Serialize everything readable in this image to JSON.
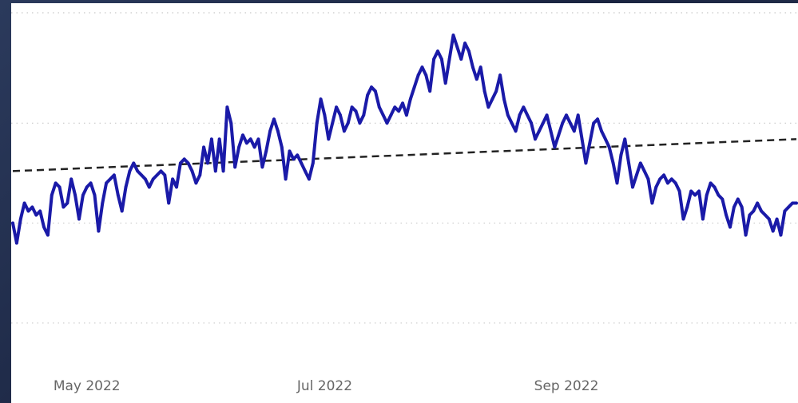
{
  "chart_data": {
    "type": "line",
    "title": "",
    "xlabel": "",
    "ylabel": "",
    "x_start": "2022-04-12",
    "x_end": "2022-10-30",
    "x_ticks": [
      {
        "date": "2022-05-01",
        "label": "May 2022"
      },
      {
        "date": "2022-07-01",
        "label": "Jul 2022"
      },
      {
        "date": "2022-09-01",
        "label": "Sep 2022"
      }
    ],
    "y_range": [
      0,
      100
    ],
    "gridlines_y": [
      20,
      45,
      70
    ],
    "grid": "horizontal dotted",
    "series": [
      {
        "color": "#1a1aa8",
        "points": [
          [
            "2022-04-12",
            45
          ],
          [
            "2022-04-13",
            40
          ],
          [
            "2022-04-14",
            46
          ],
          [
            "2022-04-15",
            50
          ],
          [
            "2022-04-16",
            48
          ],
          [
            "2022-04-17",
            49
          ],
          [
            "2022-04-18",
            47
          ],
          [
            "2022-04-19",
            48
          ],
          [
            "2022-04-20",
            44
          ],
          [
            "2022-04-21",
            42
          ],
          [
            "2022-04-22",
            52
          ],
          [
            "2022-04-23",
            55
          ],
          [
            "2022-04-24",
            54
          ],
          [
            "2022-04-25",
            49
          ],
          [
            "2022-04-26",
            50
          ],
          [
            "2022-04-27",
            56
          ],
          [
            "2022-04-28",
            52
          ],
          [
            "2022-04-29",
            46
          ],
          [
            "2022-04-30",
            52
          ],
          [
            "2022-05-01",
            54
          ],
          [
            "2022-05-02",
            55
          ],
          [
            "2022-05-03",
            52
          ],
          [
            "2022-05-04",
            43
          ],
          [
            "2022-05-05",
            50
          ],
          [
            "2022-05-06",
            55
          ],
          [
            "2022-05-07",
            56
          ],
          [
            "2022-05-08",
            57
          ],
          [
            "2022-05-09",
            52
          ],
          [
            "2022-05-10",
            48
          ],
          [
            "2022-05-11",
            54
          ],
          [
            "2022-05-12",
            58
          ],
          [
            "2022-05-13",
            60
          ],
          [
            "2022-05-14",
            58
          ],
          [
            "2022-05-15",
            57
          ],
          [
            "2022-05-16",
            56
          ],
          [
            "2022-05-17",
            54
          ],
          [
            "2022-05-18",
            56
          ],
          [
            "2022-05-19",
            57
          ],
          [
            "2022-05-20",
            58
          ],
          [
            "2022-05-21",
            57
          ],
          [
            "2022-05-22",
            50
          ],
          [
            "2022-05-23",
            56
          ],
          [
            "2022-05-24",
            54
          ],
          [
            "2022-05-25",
            60
          ],
          [
            "2022-05-26",
            61
          ],
          [
            "2022-05-27",
            60
          ],
          [
            "2022-05-28",
            58
          ],
          [
            "2022-05-29",
            55
          ],
          [
            "2022-05-30",
            57
          ],
          [
            "2022-05-31",
            64
          ],
          [
            "2022-06-01",
            60
          ],
          [
            "2022-06-02",
            66
          ],
          [
            "2022-06-03",
            58
          ],
          [
            "2022-06-04",
            66
          ],
          [
            "2022-06-05",
            58
          ],
          [
            "2022-06-06",
            74
          ],
          [
            "2022-06-07",
            70
          ],
          [
            "2022-06-08",
            59
          ],
          [
            "2022-06-09",
            64
          ],
          [
            "2022-06-10",
            67
          ],
          [
            "2022-06-11",
            65
          ],
          [
            "2022-06-12",
            66
          ],
          [
            "2022-06-13",
            64
          ],
          [
            "2022-06-14",
            66
          ],
          [
            "2022-06-15",
            59
          ],
          [
            "2022-06-16",
            63
          ],
          [
            "2022-06-17",
            68
          ],
          [
            "2022-06-18",
            71
          ],
          [
            "2022-06-19",
            68
          ],
          [
            "2022-06-20",
            64
          ],
          [
            "2022-06-21",
            56
          ],
          [
            "2022-06-22",
            63
          ],
          [
            "2022-06-23",
            61
          ],
          [
            "2022-06-24",
            62
          ],
          [
            "2022-06-25",
            60
          ],
          [
            "2022-06-26",
            58
          ],
          [
            "2022-06-27",
            56
          ],
          [
            "2022-06-28",
            60
          ],
          [
            "2022-06-29",
            70
          ],
          [
            "2022-06-30",
            76
          ],
          [
            "2022-07-01",
            72
          ],
          [
            "2022-07-02",
            66
          ],
          [
            "2022-07-03",
            70
          ],
          [
            "2022-07-04",
            74
          ],
          [
            "2022-07-05",
            72
          ],
          [
            "2022-07-06",
            68
          ],
          [
            "2022-07-07",
            70
          ],
          [
            "2022-07-08",
            74
          ],
          [
            "2022-07-09",
            73
          ],
          [
            "2022-07-10",
            70
          ],
          [
            "2022-07-11",
            72
          ],
          [
            "2022-07-12",
            77
          ],
          [
            "2022-07-13",
            79
          ],
          [
            "2022-07-14",
            78
          ],
          [
            "2022-07-15",
            74
          ],
          [
            "2022-07-16",
            72
          ],
          [
            "2022-07-17",
            70
          ],
          [
            "2022-07-18",
            72
          ],
          [
            "2022-07-19",
            74
          ],
          [
            "2022-07-20",
            73
          ],
          [
            "2022-07-21",
            75
          ],
          [
            "2022-07-22",
            72
          ],
          [
            "2022-07-23",
            76
          ],
          [
            "2022-07-24",
            79
          ],
          [
            "2022-07-25",
            82
          ],
          [
            "2022-07-26",
            84
          ],
          [
            "2022-07-27",
            82
          ],
          [
            "2022-07-28",
            78
          ],
          [
            "2022-07-29",
            86
          ],
          [
            "2022-07-30",
            88
          ],
          [
            "2022-07-31",
            86
          ],
          [
            "2022-08-01",
            80
          ],
          [
            "2022-08-02",
            86
          ],
          [
            "2022-08-03",
            92
          ],
          [
            "2022-08-04",
            89
          ],
          [
            "2022-08-05",
            86
          ],
          [
            "2022-08-06",
            90
          ],
          [
            "2022-08-07",
            88
          ],
          [
            "2022-08-08",
            84
          ],
          [
            "2022-08-09",
            81
          ],
          [
            "2022-08-10",
            84
          ],
          [
            "2022-08-11",
            78
          ],
          [
            "2022-08-12",
            74
          ],
          [
            "2022-08-13",
            76
          ],
          [
            "2022-08-14",
            78
          ],
          [
            "2022-08-15",
            82
          ],
          [
            "2022-08-16",
            76
          ],
          [
            "2022-08-17",
            72
          ],
          [
            "2022-08-18",
            70
          ],
          [
            "2022-08-19",
            68
          ],
          [
            "2022-08-20",
            72
          ],
          [
            "2022-08-21",
            74
          ],
          [
            "2022-08-22",
            72
          ],
          [
            "2022-08-23",
            70
          ],
          [
            "2022-08-24",
            66
          ],
          [
            "2022-08-25",
            68
          ],
          [
            "2022-08-26",
            70
          ],
          [
            "2022-08-27",
            72
          ],
          [
            "2022-08-28",
            68
          ],
          [
            "2022-08-29",
            64
          ],
          [
            "2022-08-30",
            67
          ],
          [
            "2022-08-31",
            70
          ],
          [
            "2022-09-01",
            72
          ],
          [
            "2022-09-02",
            70
          ],
          [
            "2022-09-03",
            68
          ],
          [
            "2022-09-04",
            72
          ],
          [
            "2022-09-05",
            66
          ],
          [
            "2022-09-06",
            60
          ],
          [
            "2022-09-07",
            65
          ],
          [
            "2022-09-08",
            70
          ],
          [
            "2022-09-09",
            71
          ],
          [
            "2022-09-10",
            68
          ],
          [
            "2022-09-11",
            66
          ],
          [
            "2022-09-12",
            64
          ],
          [
            "2022-09-13",
            60
          ],
          [
            "2022-09-14",
            55
          ],
          [
            "2022-09-15",
            62
          ],
          [
            "2022-09-16",
            66
          ],
          [
            "2022-09-17",
            60
          ],
          [
            "2022-09-18",
            54
          ],
          [
            "2022-09-19",
            57
          ],
          [
            "2022-09-20",
            60
          ],
          [
            "2022-09-21",
            58
          ],
          [
            "2022-09-22",
            56
          ],
          [
            "2022-09-23",
            50
          ],
          [
            "2022-09-24",
            54
          ],
          [
            "2022-09-25",
            56
          ],
          [
            "2022-09-26",
            57
          ],
          [
            "2022-09-27",
            55
          ],
          [
            "2022-09-28",
            56
          ],
          [
            "2022-09-29",
            55
          ],
          [
            "2022-09-30",
            53
          ],
          [
            "2022-10-01",
            46
          ],
          [
            "2022-10-02",
            49
          ],
          [
            "2022-10-03",
            53
          ],
          [
            "2022-10-04",
            52
          ],
          [
            "2022-10-05",
            53
          ],
          [
            "2022-10-06",
            46
          ],
          [
            "2022-10-07",
            52
          ],
          [
            "2022-10-08",
            55
          ],
          [
            "2022-10-09",
            54
          ],
          [
            "2022-10-10",
            52
          ],
          [
            "2022-10-11",
            51
          ],
          [
            "2022-10-12",
            47
          ],
          [
            "2022-10-13",
            44
          ],
          [
            "2022-10-14",
            49
          ],
          [
            "2022-10-15",
            51
          ],
          [
            "2022-10-16",
            49
          ],
          [
            "2022-10-17",
            42
          ],
          [
            "2022-10-18",
            47
          ],
          [
            "2022-10-19",
            48
          ],
          [
            "2022-10-20",
            50
          ],
          [
            "2022-10-21",
            48
          ],
          [
            "2022-10-22",
            47
          ],
          [
            "2022-10-23",
            46
          ],
          [
            "2022-10-24",
            43
          ],
          [
            "2022-10-25",
            46
          ],
          [
            "2022-10-26",
            42
          ],
          [
            "2022-10-27",
            48
          ],
          [
            "2022-10-28",
            49
          ],
          [
            "2022-10-29",
            50
          ],
          [
            "2022-10-30",
            50
          ]
        ]
      }
    ],
    "trendline": {
      "style": "dashed",
      "color": "#222222",
      "points": [
        [
          "2022-04-12",
          58
        ],
        [
          "2022-10-30",
          66
        ]
      ]
    }
  }
}
